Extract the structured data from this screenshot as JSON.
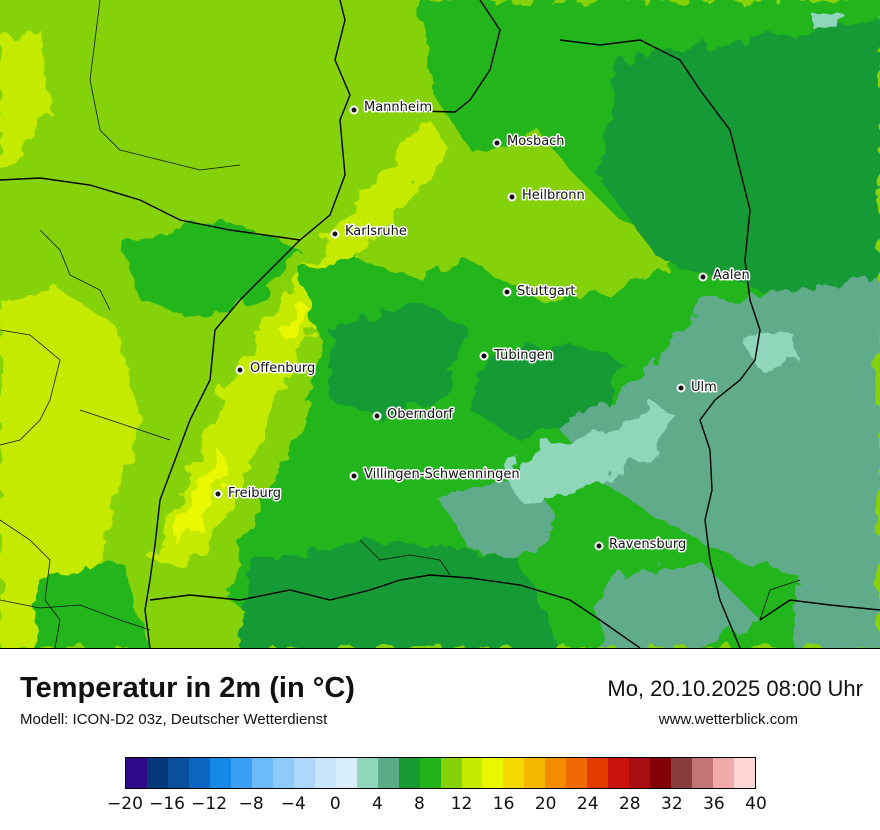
{
  "title": "Temperatur in 2m (in °C)",
  "subtitle": "Modell: ICON-D2 03z, Deutscher Wetterdienst",
  "datetime": "Mo, 20.10.2025 08:00 Uhr",
  "website": "www.wetterblick.com",
  "cities": [
    {
      "name": "Mannheim"
    },
    {
      "name": "Mosbach"
    },
    {
      "name": "Heilbronn"
    },
    {
      "name": "Karlsruhe"
    },
    {
      "name": "Aalen"
    },
    {
      "name": "Stuttgart"
    },
    {
      "name": "Tübingen"
    },
    {
      "name": "Ulm"
    },
    {
      "name": "Offenburg"
    },
    {
      "name": "Oberndorf"
    },
    {
      "name": "Villingen-Schwenningen"
    },
    {
      "name": "Freiburg"
    },
    {
      "name": "Ravensburg"
    }
  ],
  "legend": {
    "unit": "°C",
    "colors": [
      "#2e0a88",
      "#05397a",
      "#0a4f9c",
      "#0b66c2",
      "#1588e8",
      "#3aa0f5",
      "#6cbaf8",
      "#8ecafa",
      "#aed8fb",
      "#c9e5fc",
      "#d9eefd",
      "#8fd6bb",
      "#5eab8a",
      "#179a34",
      "#22b51a",
      "#86d20a",
      "#c4ea00",
      "#e9f800",
      "#f4d800",
      "#f3b700",
      "#f38c00",
      "#ef6a00",
      "#e33a00",
      "#c9130f",
      "#a90e14",
      "#820005",
      "#8a3d3d",
      "#c47474",
      "#f0aaaa",
      "#ffd6d6"
    ],
    "ticks": [
      "−20",
      "−16",
      "−12",
      "−8",
      "−4",
      "0",
      "4",
      "8",
      "12",
      "16",
      "20",
      "24",
      "28",
      "32",
      "36",
      "40"
    ]
  }
}
